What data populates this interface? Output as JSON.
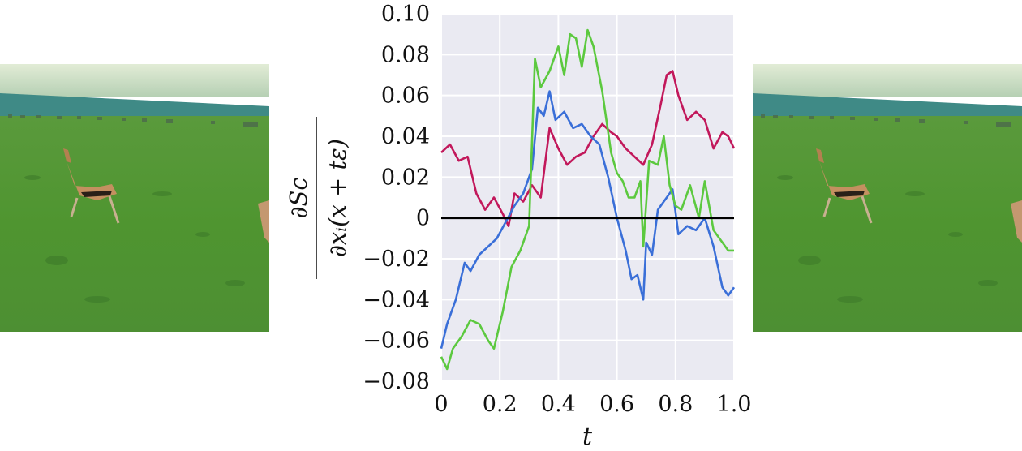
{
  "chart_data": {
    "type": "line",
    "xlabel": "t",
    "ylabel_numerator": "∂Sc",
    "ylabel_denominator": "∂xᵢ(x + tε)",
    "xlim": [
      0,
      1.0
    ],
    "ylim": [
      -0.08,
      0.1
    ],
    "x_ticks": [
      0,
      0.2,
      0.4,
      0.6,
      0.8,
      1.0
    ],
    "x_tick_labels": [
      "0",
      "0.2",
      "0.4",
      "0.6",
      "0.8",
      "1.0"
    ],
    "y_ticks": [
      0.1,
      0.08,
      0.06,
      0.04,
      0.02,
      0,
      -0.02,
      -0.04,
      -0.06,
      -0.08
    ],
    "y_tick_labels": [
      "0.10",
      "0.08",
      "0.06",
      "0.04",
      "0.02",
      "0",
      "−0.02",
      "−0.04",
      "−0.06",
      "−0.08"
    ],
    "grid": true,
    "zero_line": true,
    "series": [
      {
        "color": "#c2185b",
        "x": [
          0,
          0.03,
          0.06,
          0.09,
          0.12,
          0.15,
          0.18,
          0.21,
          0.23,
          0.25,
          0.28,
          0.31,
          0.34,
          0.37,
          0.4,
          0.43,
          0.46,
          0.49,
          0.52,
          0.55,
          0.58,
          0.6,
          0.63,
          0.66,
          0.69,
          0.72,
          0.75,
          0.77,
          0.79,
          0.81,
          0.84,
          0.87,
          0.9,
          0.93,
          0.96,
          0.98,
          1.0
        ],
        "y": [
          0.032,
          0.036,
          0.028,
          0.03,
          0.012,
          0.004,
          0.01,
          0.002,
          -0.004,
          0.012,
          0.008,
          0.016,
          0.01,
          0.044,
          0.034,
          0.026,
          0.03,
          0.032,
          0.04,
          0.046,
          0.042,
          0.04,
          0.034,
          0.03,
          0.026,
          0.036,
          0.056,
          0.07,
          0.072,
          0.06,
          0.048,
          0.052,
          0.048,
          0.034,
          0.042,
          0.04,
          0.034
        ]
      },
      {
        "color": "#3a6fd8",
        "x": [
          0,
          0.02,
          0.05,
          0.08,
          0.1,
          0.13,
          0.16,
          0.19,
          0.22,
          0.25,
          0.28,
          0.31,
          0.33,
          0.35,
          0.37,
          0.39,
          0.42,
          0.45,
          0.48,
          0.51,
          0.54,
          0.57,
          0.6,
          0.63,
          0.65,
          0.67,
          0.69,
          0.7,
          0.72,
          0.74,
          0.77,
          0.79,
          0.81,
          0.84,
          0.87,
          0.9,
          0.93,
          0.96,
          0.98,
          1.0
        ],
        "y": [
          -0.064,
          -0.052,
          -0.04,
          -0.022,
          -0.026,
          -0.018,
          -0.014,
          -0.01,
          -0.002,
          0.006,
          0.012,
          0.024,
          0.054,
          0.05,
          0.062,
          0.048,
          0.052,
          0.044,
          0.046,
          0.04,
          0.036,
          0.02,
          0.0,
          -0.016,
          -0.03,
          -0.028,
          -0.04,
          -0.012,
          -0.018,
          0.004,
          0.01,
          0.014,
          -0.008,
          -0.004,
          -0.006,
          0.0,
          -0.014,
          -0.034,
          -0.038,
          -0.034
        ]
      },
      {
        "color": "#5cc93f",
        "x": [
          0,
          0.02,
          0.04,
          0.07,
          0.1,
          0.13,
          0.16,
          0.18,
          0.21,
          0.24,
          0.27,
          0.3,
          0.32,
          0.34,
          0.37,
          0.4,
          0.42,
          0.44,
          0.46,
          0.48,
          0.5,
          0.52,
          0.55,
          0.58,
          0.6,
          0.62,
          0.64,
          0.66,
          0.68,
          0.69,
          0.71,
          0.74,
          0.76,
          0.78,
          0.8,
          0.82,
          0.85,
          0.88,
          0.9,
          0.93,
          0.96,
          0.98,
          1.0
        ],
        "y": [
          -0.068,
          -0.074,
          -0.064,
          -0.058,
          -0.05,
          -0.052,
          -0.06,
          -0.064,
          -0.046,
          -0.024,
          -0.016,
          -0.004,
          0.078,
          0.064,
          0.072,
          0.084,
          0.07,
          0.09,
          0.088,
          0.074,
          0.092,
          0.084,
          0.062,
          0.032,
          0.022,
          0.018,
          0.01,
          0.01,
          0.018,
          -0.014,
          0.028,
          0.026,
          0.04,
          0.016,
          0.006,
          0.004,
          0.016,
          0.0,
          0.018,
          -0.006,
          -0.012,
          -0.016,
          -0.016
        ]
      }
    ]
  }
}
